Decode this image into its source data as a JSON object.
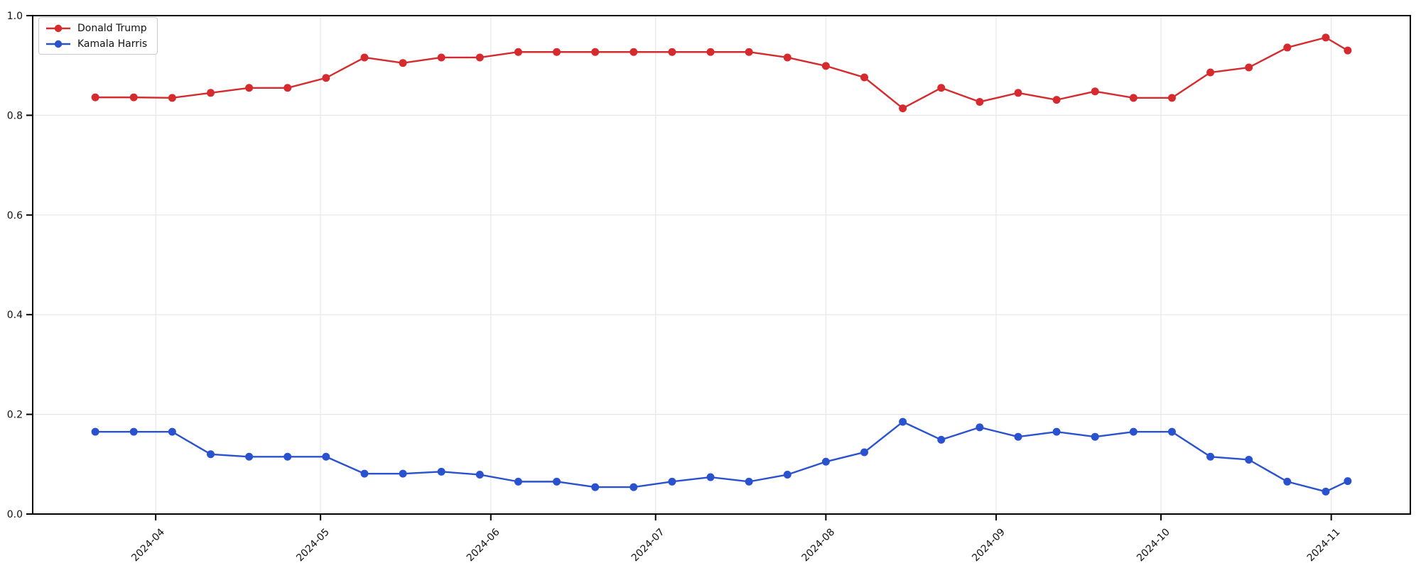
{
  "chart_data": {
    "type": "line",
    "title": "",
    "xlabel": "",
    "ylabel": "",
    "ylim": [
      0.0,
      1.0
    ],
    "grid": true,
    "legend_position": "upper-left",
    "x": [
      "2024-03-21",
      "2024-03-28",
      "2024-04-04",
      "2024-04-11",
      "2024-04-18",
      "2024-04-25",
      "2024-05-02",
      "2024-05-09",
      "2024-05-16",
      "2024-05-23",
      "2024-05-30",
      "2024-06-06",
      "2024-06-13",
      "2024-06-20",
      "2024-06-27",
      "2024-07-04",
      "2024-07-11",
      "2024-07-18",
      "2024-07-25",
      "2024-08-01",
      "2024-08-08",
      "2024-08-15",
      "2024-08-22",
      "2024-08-29",
      "2024-09-05",
      "2024-09-12",
      "2024-09-19",
      "2024-09-26",
      "2024-10-03",
      "2024-10-10",
      "2024-10-17",
      "2024-10-24",
      "2024-10-31",
      "2024-11-04"
    ],
    "series": [
      {
        "name": "Donald Trump",
        "color": "#d62b2e",
        "values": [
          0.836,
          0.836,
          0.835,
          0.845,
          0.855,
          0.855,
          0.875,
          0.916,
          0.905,
          0.916,
          0.916,
          0.927,
          0.927,
          0.927,
          0.927,
          0.927,
          0.927,
          0.927,
          0.916,
          0.899,
          0.876,
          0.814,
          0.855,
          0.827,
          0.845,
          0.831,
          0.848,
          0.835,
          0.835,
          0.886,
          0.896,
          0.936,
          0.956,
          0.93
        ]
      },
      {
        "name": "Kamala Harris",
        "color": "#2a52cf",
        "values": [
          0.165,
          0.165,
          0.165,
          0.12,
          0.115,
          0.115,
          0.115,
          0.081,
          0.081,
          0.085,
          0.079,
          0.065,
          0.065,
          0.054,
          0.054,
          0.065,
          0.074,
          0.065,
          0.079,
          0.105,
          0.124,
          0.185,
          0.149,
          0.174,
          0.155,
          0.165,
          0.155,
          0.165,
          0.165,
          0.115,
          0.109,
          0.065,
          0.045,
          0.066
        ]
      }
    ],
    "x_tick_labels": [
      "2024-04",
      "2024-05",
      "2024-06",
      "2024-07",
      "2024-08",
      "2024-09",
      "2024-10",
      "2024-11"
    ],
    "y_tick_labels": [
      "0.0",
      "0.2",
      "0.4",
      "0.6",
      "0.8",
      "1.0"
    ]
  },
  "legend": {
    "items": [
      {
        "label": "Donald Trump",
        "color": "#d62b2e"
      },
      {
        "label": "Kamala Harris",
        "color": "#2a52cf"
      }
    ]
  }
}
